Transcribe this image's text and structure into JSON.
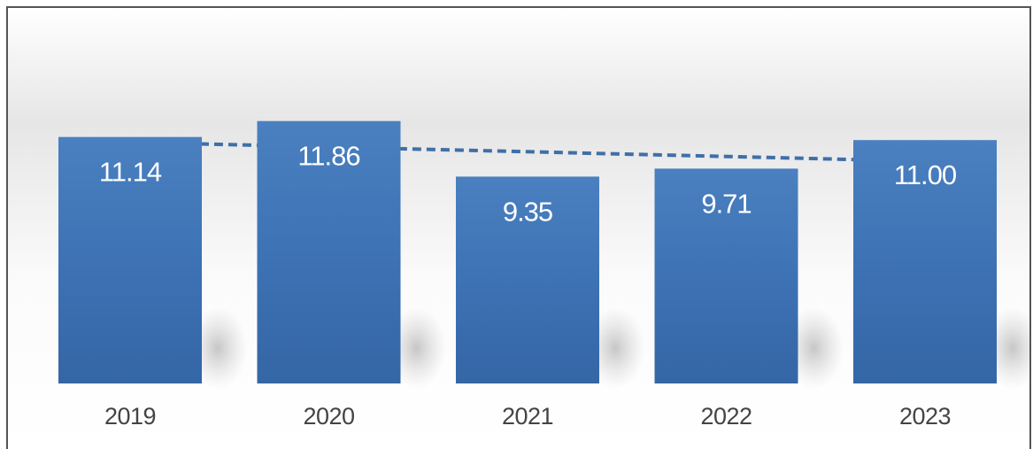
{
  "chart_data": {
    "type": "bar",
    "categories": [
      "2019",
      "2020",
      "2021",
      "2022",
      "2023"
    ],
    "values": [
      11.14,
      11.86,
      9.35,
      9.71,
      11.0
    ],
    "value_labels": [
      "11.14",
      "11.86",
      "9.35",
      "9.71",
      "11.00"
    ],
    "title": "",
    "xlabel": "",
    "ylabel": "",
    "ylim": [
      0,
      12.5
    ],
    "grid": false,
    "legend": "none",
    "trendline": {
      "style": "dashed",
      "from": "2019",
      "to": "2023"
    },
    "colors": {
      "bar": "#3f74b6",
      "bar_dark": "#356aa9",
      "trendline": "#3f6fa8"
    }
  }
}
